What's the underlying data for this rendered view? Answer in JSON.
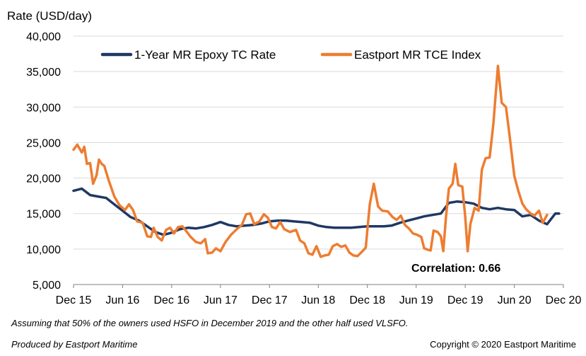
{
  "chart_data": {
    "type": "line",
    "title": "",
    "ylabel": "Rate (USD/day)",
    "xlabel": "",
    "ylim": [
      5000,
      40000
    ],
    "yticks": [
      5000,
      10000,
      15000,
      20000,
      25000,
      30000,
      35000,
      40000
    ],
    "ytick_labels": [
      "5,000",
      "10,000",
      "15,000",
      "20,000",
      "25,000",
      "30,000",
      "35,000",
      "40,000"
    ],
    "xlim": [
      "2015-12",
      "2020-12"
    ],
    "xticks": [
      "2015-12",
      "2016-06",
      "2016-12",
      "2017-06",
      "2017-12",
      "2018-06",
      "2018-12",
      "2019-06",
      "2019-12",
      "2020-06",
      "2020-12"
    ],
    "xtick_labels": [
      "Dec 15",
      "Jun 16",
      "Dec 16",
      "Jun 17",
      "Dec 17",
      "Jun 18",
      "Dec 18",
      "Jun 19",
      "Dec 19",
      "Jun 20",
      "Dec 20"
    ],
    "grid": "horizontal",
    "legend_position": "top",
    "annotation": "Correlation: 0.66",
    "series": [
      {
        "name": "1-Year MR Epoxy TC Rate",
        "color": "#1f3864",
        "points": [
          [
            "2015-12",
            18200
          ],
          [
            "2016-01",
            18500
          ],
          [
            "2016-02",
            17600
          ],
          [
            "2016-03",
            17400
          ],
          [
            "2016-04",
            17200
          ],
          [
            "2016-05",
            16300
          ],
          [
            "2016-06",
            15400
          ],
          [
            "2016-07",
            14500
          ],
          [
            "2016-08",
            14000
          ],
          [
            "2016-09",
            13200
          ],
          [
            "2016-10",
            12400
          ],
          [
            "2016-11",
            12000
          ],
          [
            "2016-12",
            12300
          ],
          [
            "2017-01",
            12800
          ],
          [
            "2017-02",
            13000
          ],
          [
            "2017-03",
            12900
          ],
          [
            "2017-04",
            13100
          ],
          [
            "2017-05",
            13400
          ],
          [
            "2017-06",
            13800
          ],
          [
            "2017-07",
            13400
          ],
          [
            "2017-08",
            13200
          ],
          [
            "2017-09",
            13300
          ],
          [
            "2017-10",
            13400
          ],
          [
            "2017-11",
            13600
          ],
          [
            "2017-12",
            13900
          ],
          [
            "2018-01",
            14000
          ],
          [
            "2018-02",
            14000
          ],
          [
            "2018-03",
            13900
          ],
          [
            "2018-04",
            13800
          ],
          [
            "2018-05",
            13700
          ],
          [
            "2018-06",
            13300
          ],
          [
            "2018-07",
            13100
          ],
          [
            "2018-08",
            13000
          ],
          [
            "2018-09",
            13000
          ],
          [
            "2018-10",
            13000
          ],
          [
            "2018-11",
            13100
          ],
          [
            "2018-12",
            13200
          ],
          [
            "2019-01",
            13200
          ],
          [
            "2019-02",
            13200
          ],
          [
            "2019-03",
            13300
          ],
          [
            "2019-04",
            13700
          ],
          [
            "2019-05",
            14000
          ],
          [
            "2019-06",
            14300
          ],
          [
            "2019-07",
            14600
          ],
          [
            "2019-08",
            14800
          ],
          [
            "2019-09",
            15000
          ],
          [
            "2019-10",
            16500
          ],
          [
            "2019-11",
            16700
          ],
          [
            "2019-12",
            16600
          ],
          [
            "2020-01",
            16400
          ],
          [
            "2020-02",
            15800
          ],
          [
            "2020-03",
            15600
          ],
          [
            "2020-04",
            15800
          ],
          [
            "2020-05",
            15600
          ],
          [
            "2020-06",
            15500
          ],
          [
            "2020-07",
            14600
          ],
          [
            "2020-08",
            14800
          ],
          [
            "2020-09",
            14000
          ],
          [
            "2020-10",
            13500
          ],
          [
            "2020-11",
            15000
          ],
          [
            "2020-11-15",
            15000
          ]
        ]
      },
      {
        "name": "Eastport MR TCE Index",
        "color": "#ed7d31",
        "points": [
          [
            "2015-12-01",
            24000
          ],
          [
            "2015-12-15",
            24700
          ],
          [
            "2016-01-01",
            23600
          ],
          [
            "2016-01-10",
            24400
          ],
          [
            "2016-01-20",
            22000
          ],
          [
            "2016-02-01",
            22100
          ],
          [
            "2016-02-12",
            19200
          ],
          [
            "2016-02-25",
            20400
          ],
          [
            "2016-03-05",
            22600
          ],
          [
            "2016-03-15",
            22000
          ],
          [
            "2016-03-25",
            21700
          ],
          [
            "2016-04-10",
            19700
          ],
          [
            "2016-05-01",
            17400
          ],
          [
            "2016-05-20",
            16200
          ],
          [
            "2016-06-10",
            15500
          ],
          [
            "2016-06-25",
            16300
          ],
          [
            "2016-07-10",
            15500
          ],
          [
            "2016-07-25",
            13900
          ],
          [
            "2016-08-15",
            13700
          ],
          [
            "2016-09-01",
            11800
          ],
          [
            "2016-09-15",
            11700
          ],
          [
            "2016-09-25",
            13000
          ],
          [
            "2016-10-10",
            11700
          ],
          [
            "2016-10-25",
            11200
          ],
          [
            "2016-11-10",
            12700
          ],
          [
            "2016-11-25",
            13000
          ],
          [
            "2016-12-10",
            12200
          ],
          [
            "2016-12-25",
            13100
          ],
          [
            "2017-01-10",
            13200
          ],
          [
            "2017-01-25",
            12500
          ],
          [
            "2017-02-10",
            11700
          ],
          [
            "2017-03-01",
            11000
          ],
          [
            "2017-03-20",
            10800
          ],
          [
            "2017-04-05",
            11400
          ],
          [
            "2017-04-15",
            9400
          ],
          [
            "2017-05-01",
            9500
          ],
          [
            "2017-05-15",
            10100
          ],
          [
            "2017-06-01",
            9700
          ],
          [
            "2017-06-20",
            11000
          ],
          [
            "2017-07-10",
            12000
          ],
          [
            "2017-08-01",
            12800
          ],
          [
            "2017-08-20",
            13400
          ],
          [
            "2017-09-05",
            14900
          ],
          [
            "2017-09-20",
            15000
          ],
          [
            "2017-10-05",
            13500
          ],
          [
            "2017-10-25",
            13900
          ],
          [
            "2017-11-10",
            14900
          ],
          [
            "2017-11-25",
            14400
          ],
          [
            "2017-12-10",
            13100
          ],
          [
            "2017-12-25",
            12900
          ],
          [
            "2018-01-10",
            13800
          ],
          [
            "2018-01-25",
            12800
          ],
          [
            "2018-02-15",
            12400
          ],
          [
            "2018-03-10",
            12700
          ],
          [
            "2018-03-25",
            11200
          ],
          [
            "2018-04-10",
            10800
          ],
          [
            "2018-04-25",
            9400
          ],
          [
            "2018-05-10",
            9200
          ],
          [
            "2018-05-25",
            10400
          ],
          [
            "2018-06-10",
            8900
          ],
          [
            "2018-06-25",
            9100
          ],
          [
            "2018-07-10",
            9200
          ],
          [
            "2018-07-25",
            10400
          ],
          [
            "2018-08-10",
            10700
          ],
          [
            "2018-08-25",
            10300
          ],
          [
            "2018-09-10",
            10500
          ],
          [
            "2018-09-25",
            9500
          ],
          [
            "2018-10-10",
            9100
          ],
          [
            "2018-10-25",
            9000
          ],
          [
            "2018-11-10",
            9600
          ],
          [
            "2018-11-25",
            10200
          ],
          [
            "2018-12-10",
            16300
          ],
          [
            "2018-12-25",
            19200
          ],
          [
            "2019-01-10",
            16000
          ],
          [
            "2019-01-25",
            15400
          ],
          [
            "2019-02-15",
            15300
          ],
          [
            "2019-03-05",
            14500
          ],
          [
            "2019-03-20",
            14100
          ],
          [
            "2019-04-05",
            14700
          ],
          [
            "2019-04-20",
            13400
          ],
          [
            "2019-05-05",
            12900
          ],
          [
            "2019-05-20",
            12200
          ],
          [
            "2019-06-05",
            12000
          ],
          [
            "2019-06-20",
            11700
          ],
          [
            "2019-07-01",
            10100
          ],
          [
            "2019-07-15",
            9900
          ],
          [
            "2019-07-25",
            9800
          ],
          [
            "2019-08-05",
            12600
          ],
          [
            "2019-08-20",
            12400
          ],
          [
            "2019-09-01",
            11800
          ],
          [
            "2019-09-10",
            9700
          ],
          [
            "2019-09-20",
            14500
          ],
          [
            "2019-10-01",
            18500
          ],
          [
            "2019-10-15",
            19200
          ],
          [
            "2019-10-25",
            22000
          ],
          [
            "2019-11-05",
            19000
          ],
          [
            "2019-11-20",
            18800
          ],
          [
            "2019-12-01",
            14500
          ],
          [
            "2019-12-10",
            9700
          ],
          [
            "2019-12-20",
            13500
          ],
          [
            "2020-01-05",
            15800
          ],
          [
            "2020-01-20",
            15400
          ],
          [
            "2020-02-01",
            21200
          ],
          [
            "2020-02-15",
            22800
          ],
          [
            "2020-03-01",
            22900
          ],
          [
            "2020-03-15",
            27700
          ],
          [
            "2020-04-01",
            35800
          ],
          [
            "2020-04-15",
            30600
          ],
          [
            "2020-05-01",
            30000
          ],
          [
            "2020-05-15",
            25800
          ],
          [
            "2020-06-01",
            20300
          ],
          [
            "2020-06-15",
            18300
          ],
          [
            "2020-07-01",
            16400
          ],
          [
            "2020-07-15",
            15600
          ],
          [
            "2020-08-01",
            15000
          ],
          [
            "2020-08-15",
            14700
          ],
          [
            "2020-09-01",
            15400
          ],
          [
            "2020-09-15",
            13700
          ],
          [
            "2020-10-01",
            14800
          ]
        ]
      }
    ]
  },
  "footnote": "Assuming that 50% of the owners used HSFO in December 2019 and the other half used VLSFO.",
  "producer": "Produced by Eastport Maritime",
  "copyright": "Copyright © 2020 Eastport Maritime"
}
